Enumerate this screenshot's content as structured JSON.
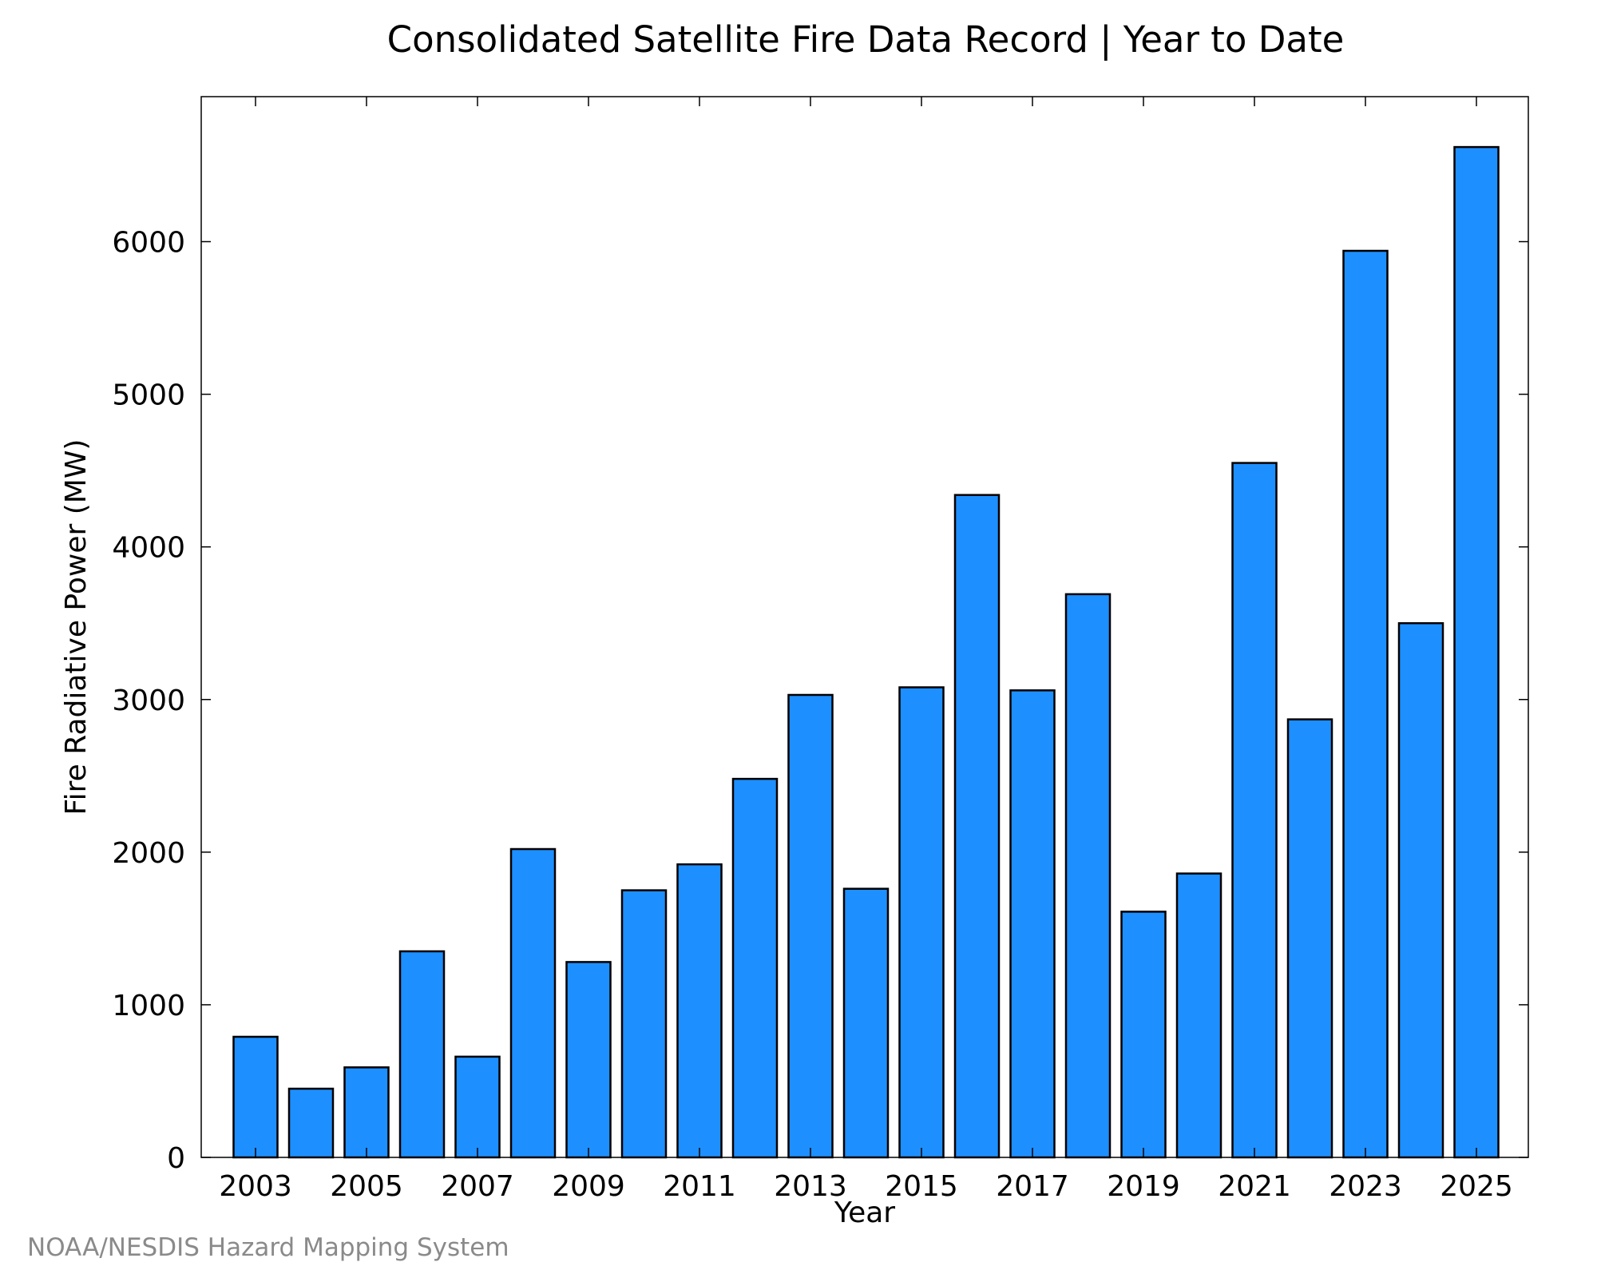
{
  "chart_data": {
    "type": "bar",
    "title": "Consolidated Satellite Fire Data Record | Year to Date",
    "xlabel": "Year",
    "ylabel": "Fire Radiative Power (MW)",
    "categories": [
      "2003",
      "2004",
      "2005",
      "2006",
      "2007",
      "2008",
      "2009",
      "2010",
      "2011",
      "2012",
      "2013",
      "2014",
      "2015",
      "2016",
      "2017",
      "2018",
      "2019",
      "2020",
      "2021",
      "2022",
      "2023",
      "2024",
      "2025"
    ],
    "values": [
      790,
      450,
      590,
      1350,
      660,
      2020,
      1280,
      1750,
      1920,
      2480,
      3030,
      1760,
      3080,
      4340,
      3060,
      3690,
      1610,
      1860,
      4550,
      2870,
      5940,
      3500,
      6620
    ],
    "x_tick_labels": [
      "2003",
      "2005",
      "2007",
      "2009",
      "2011",
      "2013",
      "2015",
      "2017",
      "2019",
      "2021",
      "2023",
      "2025"
    ],
    "y_ticks": [
      0,
      1000,
      2000,
      3000,
      4000,
      5000,
      6000
    ],
    "ylim": [
      0,
      6950
    ],
    "bar_color": "#1e8fff",
    "grid": false,
    "legend": "none"
  },
  "credit": "NOAA/NESDIS Hazard Mapping System"
}
